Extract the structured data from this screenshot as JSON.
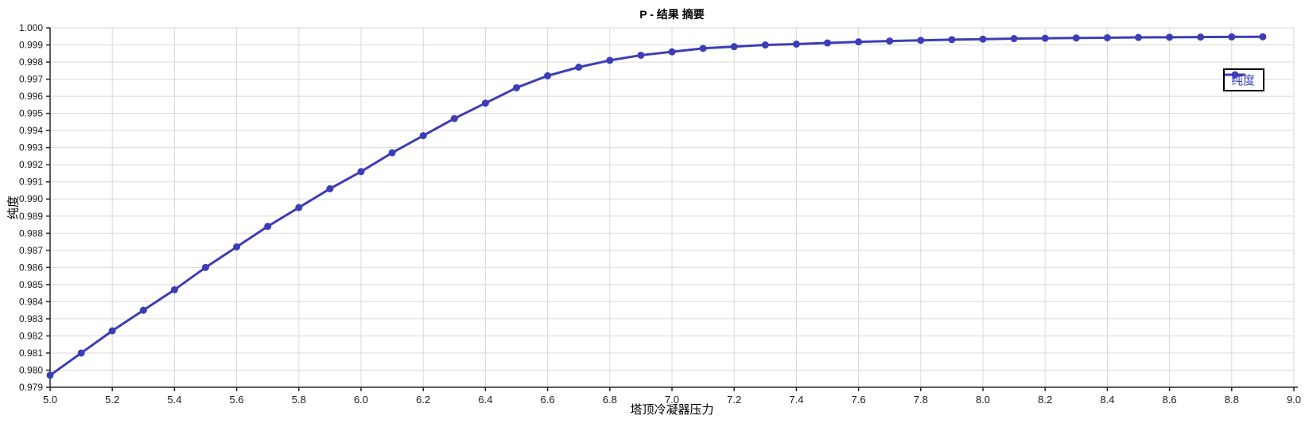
{
  "chart_data": {
    "type": "line",
    "title": "P - 结果 摘要",
    "xlabel": "塔顶冷凝器压力",
    "ylabel": "纯度",
    "xlim": [
      5.0,
      9.0
    ],
    "ylim": [
      0.979,
      1.0
    ],
    "x_tick_step": 0.2,
    "y_tick_step": 0.001,
    "x_tick_decimals": 1,
    "y_tick_decimals": 3,
    "grid": true,
    "legend_position": "right",
    "colors": {
      "series": "#3d3db8",
      "grid": "#d9d9d9",
      "axis": "#262626",
      "tick_text": "#1a1a1a",
      "legend_border": "#000000",
      "background": "#ffffff"
    },
    "series": [
      {
        "name": "纯度",
        "marker": "circle",
        "x": [
          5.0,
          5.1,
          5.2,
          5.3,
          5.4,
          5.5,
          5.6,
          5.7,
          5.8,
          5.9,
          6.0,
          6.1,
          6.2,
          6.3,
          6.4,
          6.5,
          6.6,
          6.7,
          6.8,
          6.9,
          7.0,
          7.1,
          7.2,
          7.3,
          7.4,
          7.5,
          7.6,
          7.7,
          7.8,
          7.9,
          8.0,
          8.1,
          8.2,
          8.3,
          8.4,
          8.5,
          8.6,
          8.7,
          8.8,
          8.9
        ],
        "y": [
          0.9797,
          0.981,
          0.9823,
          0.9835,
          0.9847,
          0.986,
          0.9872,
          0.9884,
          0.9895,
          0.9906,
          0.9916,
          0.9927,
          0.9937,
          0.9947,
          0.9956,
          0.9965,
          0.9972,
          0.9977,
          0.9981,
          0.9984,
          0.9986,
          0.9988,
          0.9989,
          0.999,
          0.99905,
          0.99912,
          0.99918,
          0.99923,
          0.99927,
          0.99931,
          0.99934,
          0.99937,
          0.99939,
          0.99941,
          0.99942,
          0.99944,
          0.99945,
          0.99946,
          0.99947,
          0.99948
        ]
      }
    ]
  }
}
